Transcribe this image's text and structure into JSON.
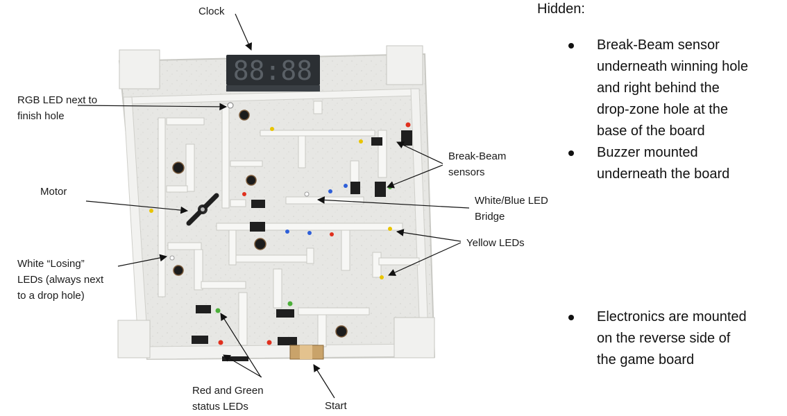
{
  "labels": {
    "clock": "Clock",
    "rgb_led": [
      "RGB LED next to",
      "finish hole"
    ],
    "motor": "Motor",
    "losing_leds": [
      "White “Losing”",
      "LEDs (always next",
      "to a drop hole)"
    ],
    "break_beam": [
      "Break-Beam",
      "sensors"
    ],
    "bridge": [
      "White/Blue LED",
      "Bridge"
    ],
    "yellow_leds": "Yellow LEDs",
    "status_leds": [
      "Red and Green",
      "status LEDs"
    ],
    "start": "Start"
  },
  "clock_display": "88:88",
  "side": {
    "title": "Hidden:",
    "bullets_top": [
      [
        "Break-Beam sensor",
        "underneath winning hole",
        "and right behind the",
        "drop-zone hole at the",
        "base of the board"
      ],
      [
        "Buzzer mounted",
        "underneath the board"
      ]
    ],
    "bullets_bottom": [
      [
        "Electronics are mounted",
        "on the reverse side of",
        "the game board"
      ]
    ]
  },
  "colors": {
    "board": "#e9e9e6",
    "wall": "#f7f7f5",
    "display_bg": "#2b2f33",
    "display_seg": "#5a6066",
    "arrow": "#111111",
    "led_red": "#e0301e",
    "led_green": "#4caf3a",
    "led_yellow": "#e8c400",
    "led_blue": "#2e5fd8"
  }
}
